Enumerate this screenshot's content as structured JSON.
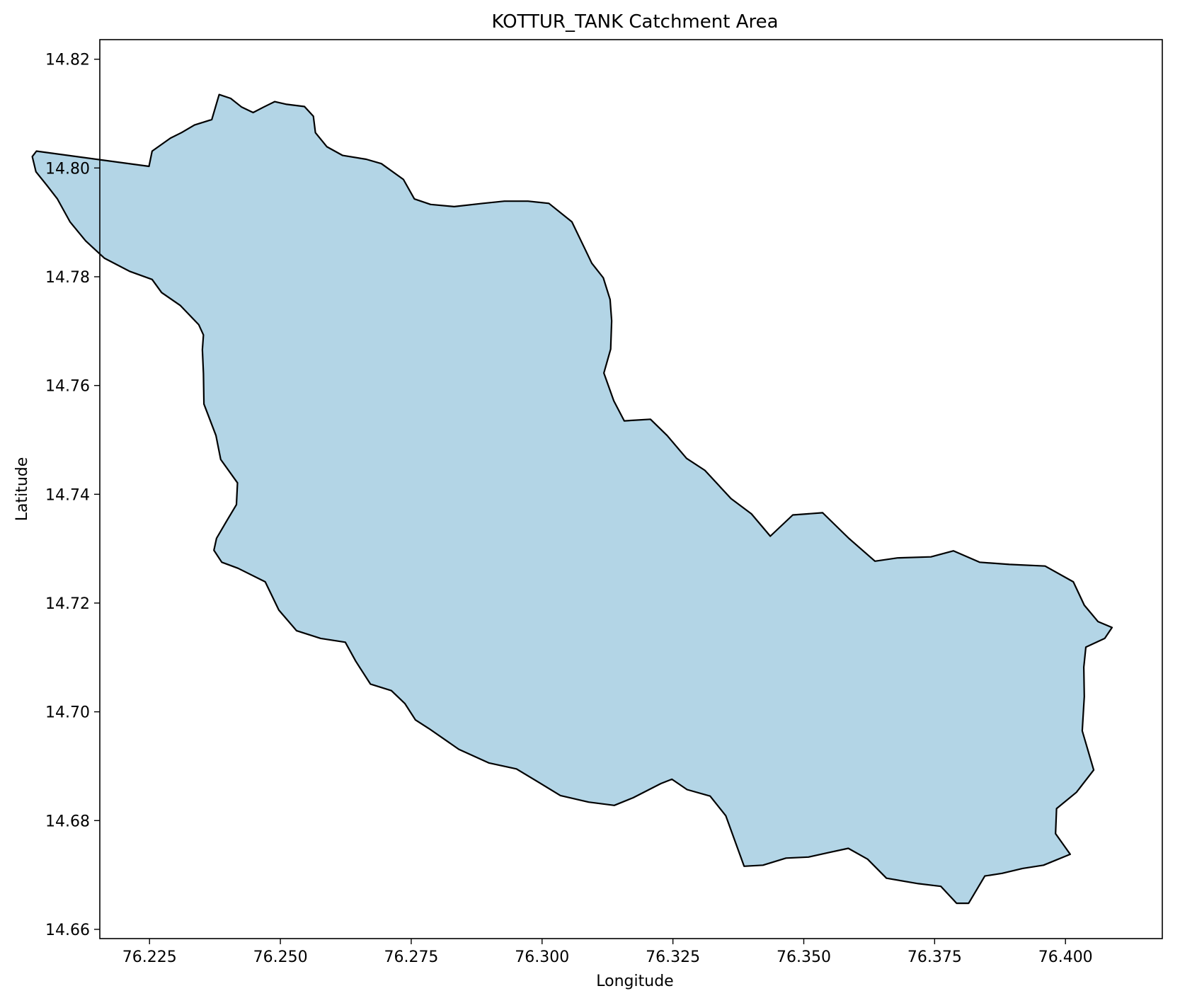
{
  "chart_data": {
    "type": "map",
    "title": "KOTTUR_TANK Catchment Area",
    "xlabel": "Longitude",
    "ylabel": "Latitude",
    "xlim": [
      76.2155,
      76.4185
    ],
    "ylim": [
      14.6583,
      14.8236
    ],
    "xticks": [
      {
        "value": 76.225,
        "label": "76.225"
      },
      {
        "value": 76.25,
        "label": "76.250"
      },
      {
        "value": 76.275,
        "label": "76.275"
      },
      {
        "value": 76.3,
        "label": "76.300"
      },
      {
        "value": 76.325,
        "label": "76.325"
      },
      {
        "value": 76.35,
        "label": "76.350"
      },
      {
        "value": 76.375,
        "label": "76.375"
      },
      {
        "value": 76.4,
        "label": "76.400"
      }
    ],
    "yticks": [
      {
        "value": 14.66,
        "label": "14.66"
      },
      {
        "value": 14.68,
        "label": "14.68"
      },
      {
        "value": 14.7,
        "label": "14.70"
      },
      {
        "value": 14.72,
        "label": "14.72"
      },
      {
        "value": 14.74,
        "label": "14.74"
      },
      {
        "value": 14.76,
        "label": "14.76"
      },
      {
        "value": 14.78,
        "label": "14.78"
      },
      {
        "value": 14.8,
        "label": "14.80"
      },
      {
        "value": 14.82,
        "label": "14.82"
      }
    ],
    "grid": false,
    "polygon": {
      "fill_color": "#b3d5e6",
      "edge_color": "#000000",
      "coordinates": [
        [
          76.2249,
          14.8003
        ],
        [
          76.2255,
          14.8031
        ],
        [
          76.229,
          14.8055
        ],
        [
          76.2311,
          14.8065
        ],
        [
          76.2336,
          14.8079
        ],
        [
          76.2369,
          14.8089
        ],
        [
          76.2383,
          14.8135
        ],
        [
          76.2405,
          14.8128
        ],
        [
          76.2426,
          14.8112
        ],
        [
          76.2448,
          14.8102
        ],
        [
          76.2468,
          14.8112
        ],
        [
          76.2489,
          14.8122
        ],
        [
          76.2512,
          14.8117
        ],
        [
          76.2546,
          14.8113
        ],
        [
          76.2563,
          14.8095
        ],
        [
          76.2567,
          14.8065
        ],
        [
          76.2589,
          14.8039
        ],
        [
          76.2619,
          14.8023
        ],
        [
          76.2664,
          14.8016
        ],
        [
          76.2693,
          14.8008
        ],
        [
          76.2735,
          14.7979
        ],
        [
          76.2756,
          14.7943
        ],
        [
          76.2787,
          14.7933
        ],
        [
          76.2832,
          14.7929
        ],
        [
          76.2887,
          14.7935
        ],
        [
          76.2928,
          14.7939
        ],
        [
          76.2973,
          14.7939
        ],
        [
          76.3013,
          14.7935
        ],
        [
          76.3057,
          14.7901
        ],
        [
          76.3081,
          14.7853
        ],
        [
          76.3095,
          14.7825
        ],
        [
          76.3117,
          14.7798
        ],
        [
          76.313,
          14.7758
        ],
        [
          76.3133,
          14.7719
        ],
        [
          76.3131,
          14.7667
        ],
        [
          76.3118,
          14.7623
        ],
        [
          76.3137,
          14.7572
        ],
        [
          76.3157,
          14.7535
        ],
        [
          76.3207,
          14.7538
        ],
        [
          76.3239,
          14.7508
        ],
        [
          76.3276,
          14.7466
        ],
        [
          76.3311,
          14.7444
        ],
        [
          76.3361,
          14.7392
        ],
        [
          76.34,
          14.7364
        ],
        [
          76.3436,
          14.7323
        ],
        [
          76.3479,
          14.7362
        ],
        [
          76.3536,
          14.7366
        ],
        [
          76.3586,
          14.7319
        ],
        [
          76.3636,
          14.7277
        ],
        [
          76.3679,
          14.7283
        ],
        [
          76.3743,
          14.7285
        ],
        [
          76.3786,
          14.7296
        ],
        [
          76.3836,
          14.7275
        ],
        [
          76.3893,
          14.7271
        ],
        [
          76.3961,
          14.7268
        ],
        [
          76.4015,
          14.7239
        ],
        [
          76.4036,
          14.7196
        ],
        [
          76.4062,
          14.7166
        ],
        [
          76.4089,
          14.7155
        ],
        [
          76.4075,
          14.7135
        ],
        [
          76.4039,
          14.7119
        ],
        [
          76.4035,
          14.7082
        ],
        [
          76.4036,
          14.7028
        ],
        [
          76.4032,
          14.6965
        ],
        [
          76.4054,
          14.6893
        ],
        [
          76.4021,
          14.6852
        ],
        [
          76.3983,
          14.6822
        ],
        [
          76.3981,
          14.6776
        ],
        [
          76.4009,
          14.6738
        ],
        [
          76.3958,
          14.6718
        ],
        [
          76.3918,
          14.6712
        ],
        [
          76.3879,
          14.6703
        ],
        [
          76.3846,
          14.6698
        ],
        [
          76.3815,
          14.6648
        ],
        [
          76.3792,
          14.6648
        ],
        [
          76.3762,
          14.6679
        ],
        [
          76.3719,
          14.6684
        ],
        [
          76.3658,
          14.6694
        ],
        [
          76.3622,
          14.6729
        ],
        [
          76.3585,
          14.6749
        ],
        [
          76.3547,
          14.6741
        ],
        [
          76.3509,
          14.6733
        ],
        [
          76.3466,
          14.6731
        ],
        [
          76.3422,
          14.6718
        ],
        [
          76.3386,
          14.6716
        ],
        [
          76.3351,
          14.6809
        ],
        [
          76.3321,
          14.6845
        ],
        [
          76.3277,
          14.6857
        ],
        [
          76.3248,
          14.6876
        ],
        [
          76.3227,
          14.6868
        ],
        [
          76.3174,
          14.6842
        ],
        [
          76.3138,
          14.6828
        ],
        [
          76.3089,
          14.6834
        ],
        [
          76.3035,
          14.6846
        ],
        [
          76.2996,
          14.6869
        ],
        [
          76.2951,
          14.6895
        ],
        [
          76.2898,
          14.6906
        ],
        [
          76.2841,
          14.6931
        ],
        [
          76.2784,
          14.6969
        ],
        [
          76.2758,
          14.6985
        ],
        [
          76.2738,
          14.7015
        ],
        [
          76.2712,
          14.7039
        ],
        [
          76.2672,
          14.7051
        ],
        [
          76.2644,
          14.7093
        ],
        [
          76.2624,
          14.7128
        ],
        [
          76.2577,
          14.7135
        ],
        [
          76.2531,
          14.7149
        ],
        [
          76.2497,
          14.7187
        ],
        [
          76.2471,
          14.7239
        ],
        [
          76.2419,
          14.7264
        ],
        [
          76.2388,
          14.7275
        ],
        [
          76.2373,
          14.7297
        ],
        [
          76.2378,
          14.7319
        ],
        [
          76.2398,
          14.7352
        ],
        [
          76.2416,
          14.7381
        ],
        [
          76.2418,
          14.7421
        ],
        [
          76.2386,
          14.7464
        ],
        [
          76.2377,
          14.7508
        ],
        [
          76.2354,
          14.7566
        ],
        [
          76.2353,
          14.7622
        ],
        [
          76.2351,
          14.7666
        ],
        [
          76.2353,
          14.7693
        ],
        [
          76.2344,
          14.7712
        ],
        [
          76.2309,
          14.7747
        ],
        [
          76.2273,
          14.7771
        ],
        [
          76.2255,
          14.7795
        ],
        [
          76.2212,
          14.781
        ],
        [
          76.2164,
          14.7834
        ],
        [
          76.2128,
          14.7866
        ],
        [
          76.2098,
          14.7901
        ],
        [
          76.2074,
          14.7943
        ],
        [
          76.2054,
          14.7968
        ],
        [
          76.2033,
          14.7993
        ],
        [
          76.2026,
          14.8021
        ],
        [
          76.2034,
          14.8031
        ],
        [
          76.2249,
          14.8003
        ]
      ]
    }
  }
}
